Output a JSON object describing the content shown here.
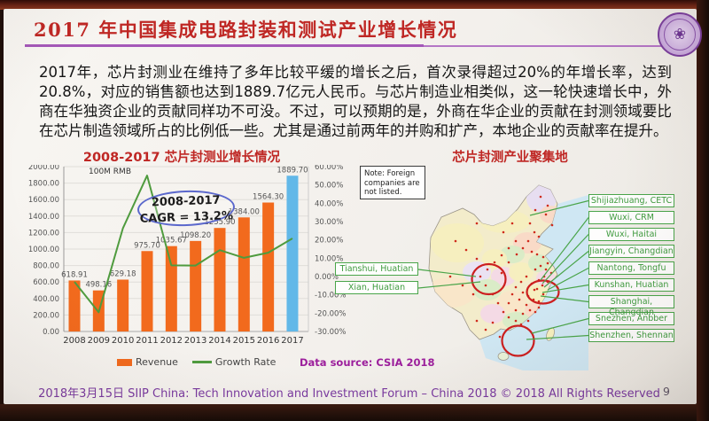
{
  "slide": {
    "title": "2017 年中国集成电路封装和测试产业增长情况",
    "body": "2017年，芯片封测业在维持了多年比较平缓的增长之后，首次录得超过20%的年增长率，达到20.8%，对应的销售额也达到1889.7亿元人民币。与芯片制造业相类似，这一轮快速增长中，外商在华独资企业的贡献同样功不可没。不过，可以预期的是，外商在华企业的贡献在封测领域要比在芯片制造领域所占的比例低一些。尤其是通过前两年的并购和扩产，本地企业的贡献率在提升。",
    "footer": "2018年3月15日 SIIP China: Tech Innovation and Investment Forum – China 2018 © 2018 All Rights Reserved",
    "page_number": "9"
  },
  "chart": {
    "title": "2008-2017 芯片封测业增长情况",
    "unit_label": "100M RMB",
    "annotation_line1": "2008-2017",
    "annotation_line2": "CAGR = 13.2%",
    "data_source": "Data source: CSIA 2018",
    "legend": [
      {
        "label": "Revenue"
      },
      {
        "label": "Growth Rate"
      }
    ]
  },
  "chart_data": {
    "type": "bar+line",
    "title": "2008-2017 芯片封测业增长情况",
    "unit": "100M RMB (亿元人民币)",
    "categories": [
      "2008",
      "2009",
      "2010",
      "2011",
      "2012",
      "2013",
      "2014",
      "2015",
      "2016",
      "2017"
    ],
    "series": [
      {
        "name": "Revenue",
        "type": "bar",
        "axis": "left",
        "values": [
          618.91,
          498.16,
          629.18,
          975.7,
          1035.67,
          1098.2,
          1255.9,
          1384.0,
          1564.3,
          1889.7
        ],
        "value_labels": [
          "618.91",
          "498.16",
          "629.18",
          "975.70",
          "1035.67",
          "1098.20",
          "1255.90",
          "1384.00",
          "1564.30",
          "1889.70"
        ]
      },
      {
        "name": "Growth Rate",
        "type": "line",
        "axis": "right",
        "values_percent": [
          -2.9,
          -19.5,
          26.3,
          55.1,
          6.1,
          6.0,
          14.4,
          10.2,
          13.0,
          20.8
        ]
      }
    ],
    "left_axis": {
      "min": 0,
      "max": 2000,
      "step": 200
    },
    "right_axis": {
      "min": -30,
      "max": 60,
      "step": 10
    },
    "highlight_index": 9,
    "grid": true,
    "legend_position": "bottom",
    "annotation": "2008-2017 CAGR = 13.2%"
  },
  "map": {
    "title": "芯片封测产业聚集地",
    "note": "Note: Foreign companies are not listed.",
    "right_labels": [
      "Shijiazhuang, CETC",
      "Wuxi, CRM",
      "Wuxi, Haitai",
      "Jiangyin, Changdian",
      "Nantong, Tongfu",
      "Kunshan, Huatian",
      "Shanghai, Changdian",
      "Snezhen, Anbber",
      "Shenzhen, Shennan"
    ],
    "left_labels": [
      "Tianshui, Huatian",
      "Xian, Huatian"
    ]
  },
  "colors": {
    "title_red": "#bf2724",
    "accent_purple": "#a458b8",
    "bar_orange": "#f26a1d",
    "bar_highlight_blue": "#62b8e8",
    "line_green": "#4f9b3e",
    "label_green": "#3f9b3f",
    "data_source_purple": "#9c1f9c",
    "footer_purple": "#7a3aa0",
    "annotation_blue": "#5b68cc",
    "map_circle_red": "#cc1f1f",
    "map_sea_blue": "#cfe7f3"
  }
}
